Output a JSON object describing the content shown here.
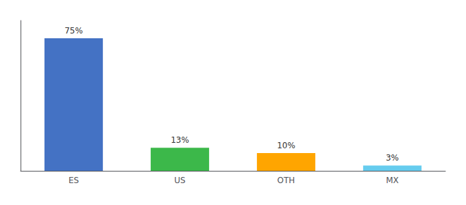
{
  "chart_data": {
    "type": "bar",
    "categories": [
      "ES",
      "US",
      "OTH",
      "MX"
    ],
    "values": [
      75,
      13,
      10,
      3
    ],
    "value_labels": [
      "75%",
      "13%",
      "10%",
      "3%"
    ],
    "colors": [
      "#4472C4",
      "#3CB84A",
      "#FFA500",
      "#66CCEE"
    ],
    "data_labels": true,
    "ylim": [
      0,
      85
    ],
    "tick_labels": "x",
    "grid": false
  }
}
